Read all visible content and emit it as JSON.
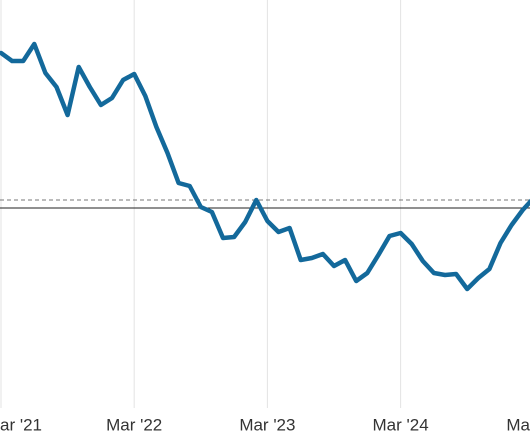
{
  "chart_data": {
    "type": "line",
    "categories": [
      "ar '21",
      null,
      null,
      null,
      null,
      null,
      null,
      null,
      null,
      null,
      null,
      null,
      "Mar '22",
      null,
      null,
      null,
      null,
      null,
      null,
      null,
      null,
      null,
      null,
      null,
      "Mar '23",
      null,
      null,
      null,
      null,
      null,
      null,
      null,
      null,
      null,
      null,
      null,
      "Mar '24",
      null,
      null,
      null,
      null,
      null,
      null,
      null,
      null,
      null,
      null,
      null,
      "Ma"
    ],
    "series": [
      {
        "color": "#13699b",
        "values": [
          86.75,
          84.75,
          84.75,
          89,
          81.75,
          78.25,
          71.25,
          83.25,
          78.25,
          73.75,
          75.5,
          80,
          81.5,
          76,
          68.25,
          61.75,
          54.25,
          53.5,
          48.25,
          47,
          40.5,
          40.75,
          44.5,
          50,
          44.75,
          42,
          43,
          35,
          35.5,
          36.5,
          33.5,
          35,
          29.75,
          31.75,
          36.25,
          41,
          41.75,
          39,
          34.75,
          31.75,
          31.25,
          31.5,
          27.75,
          30.5,
          32.75,
          39.25,
          43.75,
          47.5,
          50.5
        ]
      }
    ],
    "ylim": [
      0,
      100
    ],
    "reference_lines": [
      {
        "value": 48,
        "style": "solid"
      },
      {
        "value": 50,
        "style": "dashed"
      }
    ],
    "grid": true
  }
}
